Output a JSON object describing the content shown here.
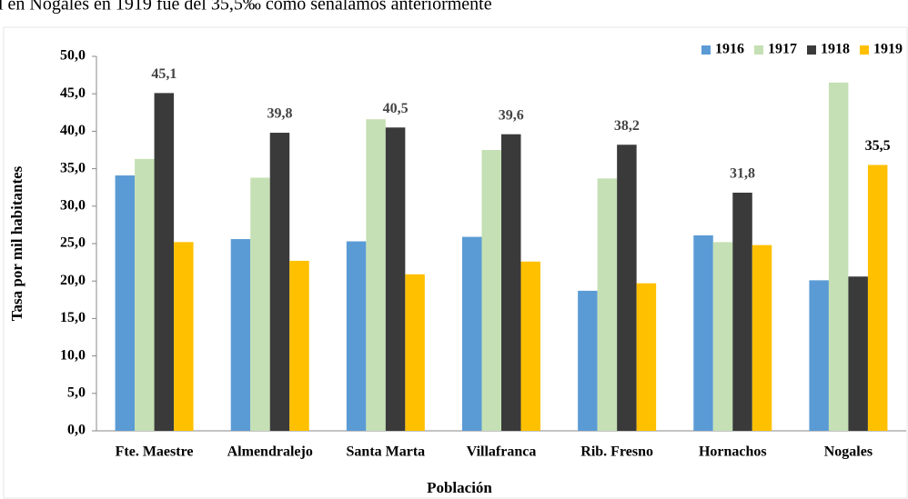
{
  "page_text": "l en Nogales en 1919 fue del 35,5‰ como señalamos anteriormente",
  "chart_data": {
    "type": "bar",
    "x_label": "Población",
    "y_label": "Tasa por mil habitantes",
    "categories": [
      "Fte. Maestre",
      "Almendralejo",
      "Santa Marta",
      "Villafranca",
      "Rib. Fresno",
      "Hornachos",
      "Nogales"
    ],
    "series": [
      {
        "name": "1916",
        "color": "#5b9bd5",
        "values": [
          34.1,
          25.6,
          25.3,
          25.9,
          18.7,
          26.1,
          20.1
        ]
      },
      {
        "name": "1917",
        "color": "#c5e0b4",
        "values": [
          36.3,
          33.8,
          41.6,
          37.5,
          33.7,
          25.2,
          46.5
        ]
      },
      {
        "name": "1918",
        "color": "#3a3a3a",
        "values": [
          45.1,
          39.8,
          40.5,
          39.6,
          38.2,
          31.8,
          20.6
        ],
        "value_labels": [
          "45,1",
          "39,8",
          "40,5",
          "39,6",
          "38,2",
          "31,8",
          null
        ]
      },
      {
        "name": "1919",
        "color": "#ffc000",
        "values": [
          25.2,
          22.7,
          20.9,
          22.6,
          19.7,
          24.8,
          35.5
        ],
        "value_labels": [
          null,
          null,
          null,
          null,
          null,
          null,
          "35,5"
        ]
      }
    ],
    "ylim": [
      0,
      50
    ],
    "yticks": [
      {
        "value": 0,
        "label": "0,0"
      },
      {
        "value": 5,
        "label": "5,0"
      },
      {
        "value": 10,
        "label": "10,0"
      },
      {
        "value": 15,
        "label": "15,0"
      },
      {
        "value": 20,
        "label": "20,0"
      },
      {
        "value": 25,
        "label": "25,0"
      },
      {
        "value": 30,
        "label": "30,0"
      },
      {
        "value": 35,
        "label": "35,0"
      },
      {
        "value": 40,
        "label": "40,0"
      },
      {
        "value": 45,
        "label": "45,0"
      },
      {
        "value": 50,
        "label": "50,0"
      }
    ],
    "legend": "top-right"
  }
}
